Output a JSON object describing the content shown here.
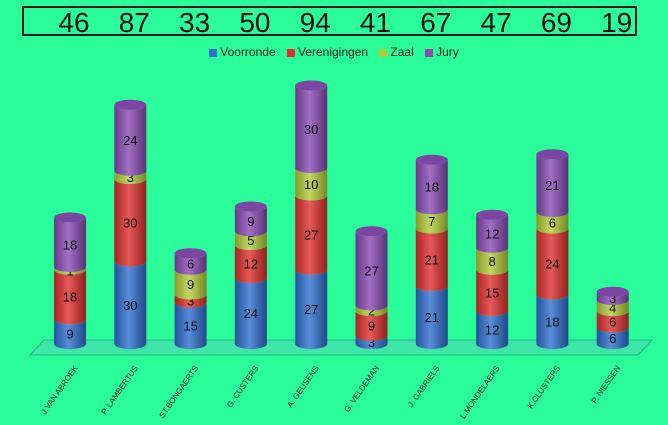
{
  "chart_data": {
    "type": "bar",
    "stacked": true,
    "categories": [
      "J.VAN ABROEK",
      "P. LAMBERTUS",
      "ST.BONGAERTS",
      "G. CUSTERS",
      "A. GEUSENS",
      "G. VELDEMAN",
      "J. GABRIELS",
      "L.MONDELAERS",
      "K.CLUSTERS",
      "P. NIESSEN"
    ],
    "totals": [
      46,
      87,
      33,
      50,
      94,
      41,
      67,
      47,
      69,
      19
    ],
    "series": [
      {
        "name": "Voorronde",
        "color": "#2f6fd0",
        "values": [
          9,
          30,
          15,
          24,
          27,
          3,
          21,
          12,
          18,
          6
        ]
      },
      {
        "name": "Verenigingen",
        "color": "#e03030",
        "values": [
          18,
          30,
          3,
          12,
          27,
          9,
          21,
          15,
          24,
          6
        ]
      },
      {
        "name": "Zaal",
        "color": "#b5cc3a",
        "values": [
          1,
          3,
          9,
          5,
          10,
          2,
          7,
          8,
          6,
          4
        ]
      },
      {
        "name": "Jury",
        "color": "#8a4bb5",
        "values": [
          18,
          24,
          6,
          9,
          30,
          27,
          18,
          12,
          21,
          3
        ]
      }
    ],
    "legend_position": "top"
  }
}
